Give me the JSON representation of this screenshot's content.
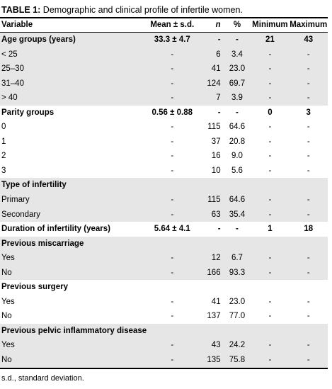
{
  "title": {
    "label": "TABLE 1:",
    "text": " Demographic and clinical profile of infertile women."
  },
  "headers": {
    "variable": "Variable",
    "mean": "Mean ± s.d.",
    "n": "n",
    "pct": "%",
    "min": "Minimum",
    "max": "Maximum"
  },
  "rows": [
    {
      "variable": "Age groups (years)",
      "mean": "33.3 ± 4.7",
      "n": "-",
      "pct": "-",
      "min": "21",
      "max": "43"
    },
    {
      "variable": "< 25",
      "mean": "-",
      "n": "6",
      "pct": "3.4",
      "min": "-",
      "max": "-"
    },
    {
      "variable": "25–30",
      "mean": "-",
      "n": "41",
      "pct": "23.0",
      "min": "-",
      "max": "-"
    },
    {
      "variable": "31–40",
      "mean": "-",
      "n": "124",
      "pct": "69.7",
      "min": "-",
      "max": "-"
    },
    {
      "variable": "> 40",
      "mean": "-",
      "n": "7",
      "pct": "3.9",
      "min": "-",
      "max": "-"
    },
    {
      "variable": "Parity groups",
      "mean": "0.56 ± 0.88",
      "n": "-",
      "pct": "-",
      "min": "0",
      "max": "3"
    },
    {
      "variable": "0",
      "mean": "-",
      "n": "115",
      "pct": "64.6",
      "min": "-",
      "max": "-"
    },
    {
      "variable": "1",
      "mean": "-",
      "n": "37",
      "pct": "20.8",
      "min": "-",
      "max": "-"
    },
    {
      "variable": "2",
      "mean": "-",
      "n": "16",
      "pct": "9.0",
      "min": "-",
      "max": "-"
    },
    {
      "variable": "3",
      "mean": "-",
      "n": "10",
      "pct": "5.6",
      "min": "-",
      "max": "-"
    },
    {
      "variable": "Type of infertility",
      "mean": "",
      "n": "",
      "pct": "",
      "min": "",
      "max": ""
    },
    {
      "variable": "Primary",
      "mean": "-",
      "n": "115",
      "pct": "64.6",
      "min": "-",
      "max": "-"
    },
    {
      "variable": "Secondary",
      "mean": "-",
      "n": "63",
      "pct": "35.4",
      "min": "-",
      "max": "-"
    },
    {
      "variable": "Duration of infertility (years)",
      "mean": "5.64 ± 4.1",
      "n": "-",
      "pct": "-",
      "min": "1",
      "max": "18"
    },
    {
      "variable": "Previous miscarriage",
      "mean": "",
      "n": "",
      "pct": "",
      "min": "",
      "max": ""
    },
    {
      "variable": "Yes",
      "mean": "-",
      "n": "12",
      "pct": "6.7",
      "min": "-",
      "max": "-"
    },
    {
      "variable": "No",
      "mean": "-",
      "n": "166",
      "pct": "93.3",
      "min": "-",
      "max": "-"
    },
    {
      "variable": "Previous surgery",
      "mean": "",
      "n": "",
      "pct": "",
      "min": "",
      "max": ""
    },
    {
      "variable": "Yes",
      "mean": "-",
      "n": "41",
      "pct": "23.0",
      "min": "-",
      "max": "-"
    },
    {
      "variable": "No",
      "mean": "-",
      "n": "137",
      "pct": "77.0",
      "min": "-",
      "max": "-"
    },
    {
      "variable": "Previous pelvic inflammatory disease",
      "mean": "",
      "n": "",
      "pct": "",
      "min": "",
      "max": ""
    },
    {
      "variable": "Yes",
      "mean": "-",
      "n": "43",
      "pct": "24.2",
      "min": "-",
      "max": "-"
    },
    {
      "variable": "No",
      "mean": "-",
      "n": "135",
      "pct": "75.8",
      "min": "-",
      "max": "-"
    }
  ],
  "footnote": "s.d., standard deviation.",
  "colors": {
    "shade": "#e6e6e6",
    "rule": "#000000"
  }
}
